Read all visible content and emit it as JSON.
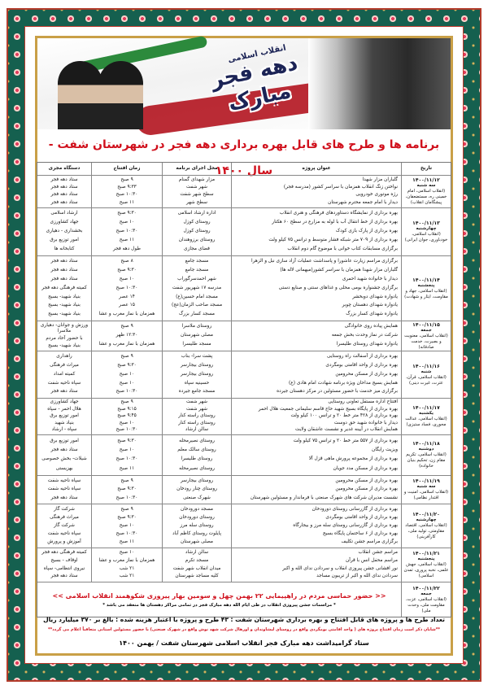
{
  "banner": {
    "logo_main": "دهه فجر مبارک",
    "logo_sub": "انقلاب اسلامی"
  },
  "title": "برنامه ها و طرح های قابل بهره برداری دهه فجر در شهرستان شفت - سال ۱۴۰۰",
  "columns": {
    "date": "تاریخ",
    "project": "عنوان پروژه",
    "location": "محل اجرای برنامه",
    "time": "زمان افتتاح",
    "organizer": "دستگاه مجری"
  },
  "days": [
    {
      "date": "۱۴۰۰/۱۱/۱۲",
      "weekday": "سه شنبه",
      "theme": "(انقلاب اسلامی، امام خمینی ره، مستضعفان، پیشگامان انقلاب)",
      "items": [
        [
          "گلباران مزار شهدا",
          "مزار شهدای گمنام",
          "۹ صبح",
          "ستاد دهه فجر"
        ],
        [
          "نواختن زنگ انقلاب همزمان با سراسر کشور (مدرسه فجر)",
          "شهر شفت",
          "۹:۳۳ صبح",
          "ستاد دهه فجر"
        ],
        [
          "رژه موتوری خودرویی",
          "سطح شهر شفت",
          "۱۰:۳۰ صبح",
          "ستاد دهه فجر"
        ],
        [
          "دیدار با امام جمعه محترم شهرستان",
          "سطح شهر",
          "۱۱ صبح",
          "ستاد دهه فجر"
        ]
      ]
    },
    {
      "date": "۱۴۰۰/۱۱/۱۳",
      "weekday": "چهارشنبه",
      "theme": "(انقلاب اسلامی، خودباوری، جوان ایرانی)",
      "items": [
        [
          "بهره برداری از نمایشگاه دستاوردهای فرهنگی و هنری انقلاب",
          "اداره ارشاد اسلامی",
          "۹:۳۰ صبح",
          "ارشاد اسلامی"
        ],
        [
          "بهره برداری از خط انتقال آب با لوله به مزارع در سطح ۶۰ هکتار",
          "روستای کوزل",
          "۱۰ صبح",
          "جهاد کشاورزی"
        ],
        [
          "بهره برداری از پارک بازی کودک",
          "روستای کوزل",
          "۱۰:۳۰ صبح",
          "بخشداری - دهیاری"
        ],
        [
          "بهره برداری از ۷۰۹ متر شبکه فشار متوسط و ترانس ۷۵ کیلو ولت",
          "روستای برزوهندان",
          "۱۱ صبح",
          "امور توزیع برق"
        ],
        [
          "برگزاری مسابقات کتاب خوانی با موضوع گام دوم انقلاب",
          "فضای مجازی",
          "طول دهه فجر",
          "کتابخانه ها"
        ]
      ]
    },
    {
      "date": "۱۴۰۰/۱۱/۱۴",
      "weekday": "پنجشنبه",
      "theme": "(انقلاب اسلامی، جهاد و مقاومت، ایثار و شهادت)",
      "items": [
        [
          "برگزاری مراسم زیارت عاشورا و پاسداشت عملیات آزاد سازی نبل و الزهرا",
          "مسجد جامع",
          "۸ صبح",
          "ستاد دهه فجر"
        ],
        [
          "گلباران مزار شهدا همزمان با سراسر کشور(میهمانی لاله ها)",
          "مسجد جامع",
          "۹:۳۰ صبح",
          "ستاد دهه فجر"
        ],
        [
          "دیدار با خانواده شهید احمری",
          "شهر احمدسرگوراب",
          "۱۰ صبح",
          "ستاد دهه فجر"
        ],
        [
          "برگزاری جشنواره بومی محلی و غذاهای سنتی و صنایع دستی",
          "مدرسه ۱۷ شهریور شفت",
          "۱۰:۳۰ صبح",
          "کمیته فرهنگی دهه فجر"
        ],
        [
          "یادواره شهدای دوبخشر",
          "مسجد امام حسین(ع)",
          "۱۴ عصر",
          "بنیاد شهید- بسیج"
        ],
        [
          "یادواره شهدای دهستان چوبر",
          "مسجد صاحب الزمان(عج)",
          "۱۵ عصر",
          "بنیاد شهید- بسیج"
        ],
        [
          "یادواره شهدای کسار بزرگ",
          "مسجد کسار بزرگ",
          "همزمان با نماز مغرب و عشا",
          "بنیاد شهید- بسیج"
        ]
      ]
    },
    {
      "date": "۱۴۰۰/۱۱/۱۵",
      "weekday": "جمعه",
      "theme": "(انقلاب اسلامی، معنویت و بصیرت، خدمت صادقانه)",
      "items": [
        [
          "همایش پیاده روی خانوادگی",
          "روستای ملاسرا",
          "۹ صبح",
          "ورزش و جوانان- دهیاری ملاسرا"
        ],
        [
          "شرکت در نماز وحدت بخش جمعه",
          "مصلی شهرستان",
          "۱۲:۳۰ ظهر",
          "با حضور آحاد مردم"
        ],
        [
          "یادواره شهدای روستای طلیسرا",
          "مسجد طلیسرا",
          "همزمان با نماز مغرب و عشا",
          "بنیاد شهید- بسیج"
        ]
      ]
    },
    {
      "date": "۱۴۰۰/۱۱/۱۶",
      "weekday": "شنبه",
      "theme": "(انقلاب اسلامی، قرآن، عترت، غیرت دینی)",
      "items": [
        [
          "بهره برداری از آسفالت راه روستایی",
          "پشت سرا- بناب",
          "۹ صبح",
          "راهداری"
        ],
        [
          "بهره برداری از واحد اقامتی بومگردی",
          "روستای بیجارسر",
          "۹:۳۰ صبح",
          "میراث فرهنگی"
        ],
        [
          "بهره برداری از مسکن محرومین",
          "روستای بیجارسر",
          "۱۰ صبح",
          "کمیته امداد"
        ],
        [
          "همایش بسیج مداحان ویژه برنامه شهادت امام هادی (ع)",
          "حسینیه سپاه",
          "۱۰ صبح",
          "سپاه ناحیه شفت"
        ],
        [
          "برگزاری میز خدمت با حضور مسئولین در مرکز دهستان جیرده",
          "مسجد جامع جیرده",
          "۱۰:۳۰ صبح",
          "ستاد دهه فجر"
        ]
      ]
    },
    {
      "date": "۱۴۰۰/۱۱/۱۷",
      "weekday": "یکشنبه",
      "theme": "(انقلاب اسلامی، عدالت محوری، فساد ستیزی)",
      "items": [
        [
          "افتتاح اداره مستقل تعاونی روستایی",
          "شهر شفت",
          "۹ صبح",
          "جهاد کشاورزی"
        ],
        [
          "بهره برداری از پایگاه بسیج شهید حاج قاسم سلیمانی جمعیت هلال احمر",
          "شهر شفت",
          "۹:۱۵ صبح",
          "هلال احمر - سپاه"
        ],
        [
          "بهره برداری از ۴۲۸ متر خط ۲۰ و ترانس ۱۰۰ کیلو ولت",
          "روستای راسته کنار",
          "۹:۴۵ صبح",
          "امور توزیع برق"
        ],
        [
          "دیدار با خانواده شهید حق دوست",
          "روستای راسته کنار",
          "۱۰ صبح",
          "بنیاد شهید"
        ],
        [
          "همایش انقلاب در آیینه غدیر و نشست عاشقان ولایت",
          "سالن ارشاد",
          "۱۰:۳۰ صبح",
          "سپاه - ارشاد"
        ]
      ]
    },
    {
      "date": "۱۴۰۰/۱۱/۱۸",
      "weekday": "دوشنبه",
      "theme": "(انقلاب اسلامی، تکریم مقام زن، تحکیم بنیان خانواده)",
      "items": [
        [
          "بهره برداری از ۵۵۷ متر خط ۲۰ و ترانس ۷۵ کیلو ولت",
          "روستای نصیرمحله",
          "۹:۳۰ صبح",
          "امور توزیع برق"
        ],
        [
          "ویزیت رایگان",
          "روستای سالک معلم",
          "۱۰ صبح",
          "ستاد دهه فجر"
        ],
        [
          "بهره برداری از مجموعه پرورش ماهی قزل آلا",
          "روستای طلیسرا",
          "۱۰:۳۰ صبح",
          "شیلات- بخش خصوصی"
        ],
        [
          "بهره برداری از مسکن مدد جویان",
          "روستای نصیرمحله",
          "۱۱ صبح",
          "بهزیستی"
        ]
      ]
    },
    {
      "date": "۱۴۰۰/۱۱/۱۹",
      "weekday": "سه شنبه",
      "theme": "(انقلاب اسلامی، امنیت و اقتدار نظامی)",
      "items": [
        [
          "بهره برداری از مسکن محرومین",
          "روستای بیجارسر",
          "۹ صبح",
          "سپاه ناحیه شفت"
        ],
        [
          "بهره برداری از مسکن محرومین",
          "روستای چنار رودخان",
          "۹:۳۰ صبح",
          "سپاه ناحیه شفت"
        ],
        [
          "نشست مدیران شرکت های شهرک صنعتی با فرماندار و مسئولین شهرستان",
          "شهرک صنعتی",
          "۱۰:۳۰ صبح",
          "ستاد دهه فجر"
        ]
      ]
    },
    {
      "date": "۱۴۰۰/۱۱/۲۰",
      "weekday": "چهارشنبه",
      "theme": "(انقلاب اسلامی، اقتصاد مقاومتی، تولید ملی، کارآفرینی)",
      "items": [
        [
          "بهره برداری از گازرسانی روستای دورودخان",
          "مسجد دورودخان",
          "۹ صبح",
          "شرکت گاز"
        ],
        [
          "بهره برداری از واحد اقامتی بومگردی",
          "روستای دورودخان",
          "۹:۳۰ صبح",
          "میراث فرهنگی"
        ],
        [
          "بهره برداری از گازرسانی روستای سله مرز و بیجارگاه",
          "روستای سله مرز",
          "۱۰ صبح",
          "شرکت گاز"
        ],
        [
          "بهره برداری از ۶ ساختمان پایگاه بسیج",
          "پایلوت روستای کاظم آباد",
          "۱۰:۳۰ صبح",
          "سپاه ناحیه شفت"
        ],
        [
          "برگزاری مراسم جشن تکلیف",
          "مصلی شهرستان",
          "۱۱ صبح",
          "آموزش و پرورش"
        ]
      ]
    },
    {
      "date": "۱۴۰۰/۱۱/۲۱",
      "weekday": "پنجشنبه",
      "theme": "(انقلاب اسلامی، جهش علمی، نخبه پروری، تمدن اسلامی)",
      "items": [
        [
          "مراسم جشن انقلاب",
          "سالن ارشاد",
          "۱۰ صبح",
          "کمیته فرهنگی دهه فجر"
        ],
        [
          "مراسم محفل انس با قرآن",
          "مسجد تکرم",
          "همزمان با نماز مغرب و عشا",
          "اوقاف - بسیج"
        ],
        [
          "نور افشانی جشن پیروزی انقلاب و سردادن ندای الله و اکبر",
          "میدان انقلاب شهر شفت",
          "۲۱ شب",
          "نیروی انتظامی- سپاه"
        ],
        [
          "سردادن ندای الله و اکبر از تریبون مساجد",
          "کلیه مساجد شهرستان",
          "۲۱ شب",
          "ستاد دهه فجر"
        ]
      ]
    },
    {
      "date": "۱۴۰۰/۱۱/۲۲",
      "weekday": "جمعه",
      "theme": "(انقلاب اسلامی، عزت، مقاومت ملی، وحدت ملی)",
      "merged": [
        "<< حضور حماسی مردم در راهپیمایی ۲۲ بهمن چهل و سومین بهار پیروزی شکوهمند انقلاب اسلامی >>",
        "* مراسمات جشن پیروزی انقلاب در طی ایام الله دهه مبارک فجر در تمامی مراکز دهستان ها منعقد می باشد *"
      ]
    }
  ],
  "footer": {
    "summary": "تعداد طرح ها و پروژه های قابل افتتاح و بهره برداری شهرستان شفت : ۴۳ طرح و پروژه با اعتبار هزینه شده : بالغ بر ۳۷۰ میلیارد ریال",
    "note": "**شایان ذکر است زمان افتتاح پروژه های ( واحد اقامتی بومگردی واقع در روستای لیشاوندان و اورهال شرکت شهد نوش واقع در شهرک صنعتی) با حضور مسئولین استانی متعاقباً اعلام می گردد**",
    "signature": "ستاد گرامیداشت دهه مبارک فجر انقلاب اسلامی شهرستان شفت / بهمن ۱۴۰۰"
  },
  "colors": {
    "title_red": "#d0101c",
    "border_teal": "#15604f",
    "frame_gold": "#c9a047",
    "logo_navy": "#1c2456"
  }
}
